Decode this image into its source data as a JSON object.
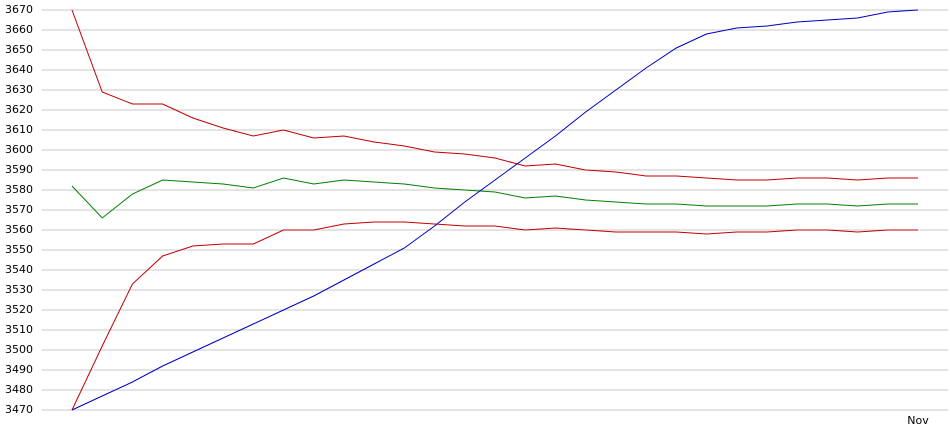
{
  "chart_data": {
    "type": "line",
    "categories": [
      null,
      null,
      null,
      null,
      null,
      null,
      null,
      null,
      null,
      null,
      null,
      null,
      null,
      null,
      null,
      null,
      null,
      null,
      null,
      null,
      null,
      null,
      null,
      null,
      null,
      null,
      null,
      null,
      "Nov"
    ],
    "series": [
      {
        "color": "#c00000",
        "values": [
          3670,
          3629,
          3623,
          3623,
          3616,
          3611,
          3607,
          3610,
          3606,
          3607,
          3604,
          3602,
          3599,
          3598,
          3596,
          3592,
          3593,
          3590,
          3589,
          3587,
          3587,
          3586,
          3585,
          3585,
          3586,
          3586,
          3585,
          3586,
          3586
        ]
      },
      {
        "color": "#008000",
        "values": [
          3582,
          3566,
          3578,
          3585,
          3584,
          3583,
          3581,
          3586,
          3583,
          3585,
          3584,
          3583,
          3581,
          3580,
          3579,
          3576,
          3577,
          3575,
          3574,
          3573,
          3573,
          3572,
          3572,
          3572,
          3573,
          3573,
          3572,
          3573,
          3573
        ]
      },
      {
        "color": "#c00000",
        "values": [
          3470,
          3502,
          3533,
          3547,
          3552,
          3553,
          3553,
          3560,
          3560,
          3563,
          3564,
          3564,
          3563,
          3562,
          3562,
          3560,
          3561,
          3560,
          3559,
          3559,
          3559,
          3558,
          3559,
          3559,
          3560,
          3560,
          3559,
          3560,
          3560
        ]
      },
      {
        "color": "#0000c0",
        "values": [
          3470,
          3477,
          3484,
          3492,
          3499,
          3506,
          3513,
          3520,
          3527,
          3535,
          3543,
          3551,
          3562,
          3574,
          3585,
          3596,
          3607,
          3619,
          3630,
          3641,
          3651,
          3658,
          3661,
          3662,
          3664,
          3665,
          3666,
          3669,
          3670
        ]
      }
    ],
    "ylim": [
      3470,
      3670
    ],
    "yticks": [
      3470,
      3480,
      3490,
      3500,
      3510,
      3520,
      3530,
      3540,
      3550,
      3560,
      3570,
      3580,
      3590,
      3600,
      3610,
      3620,
      3630,
      3640,
      3650,
      3660,
      3670
    ],
    "grid": true
  }
}
